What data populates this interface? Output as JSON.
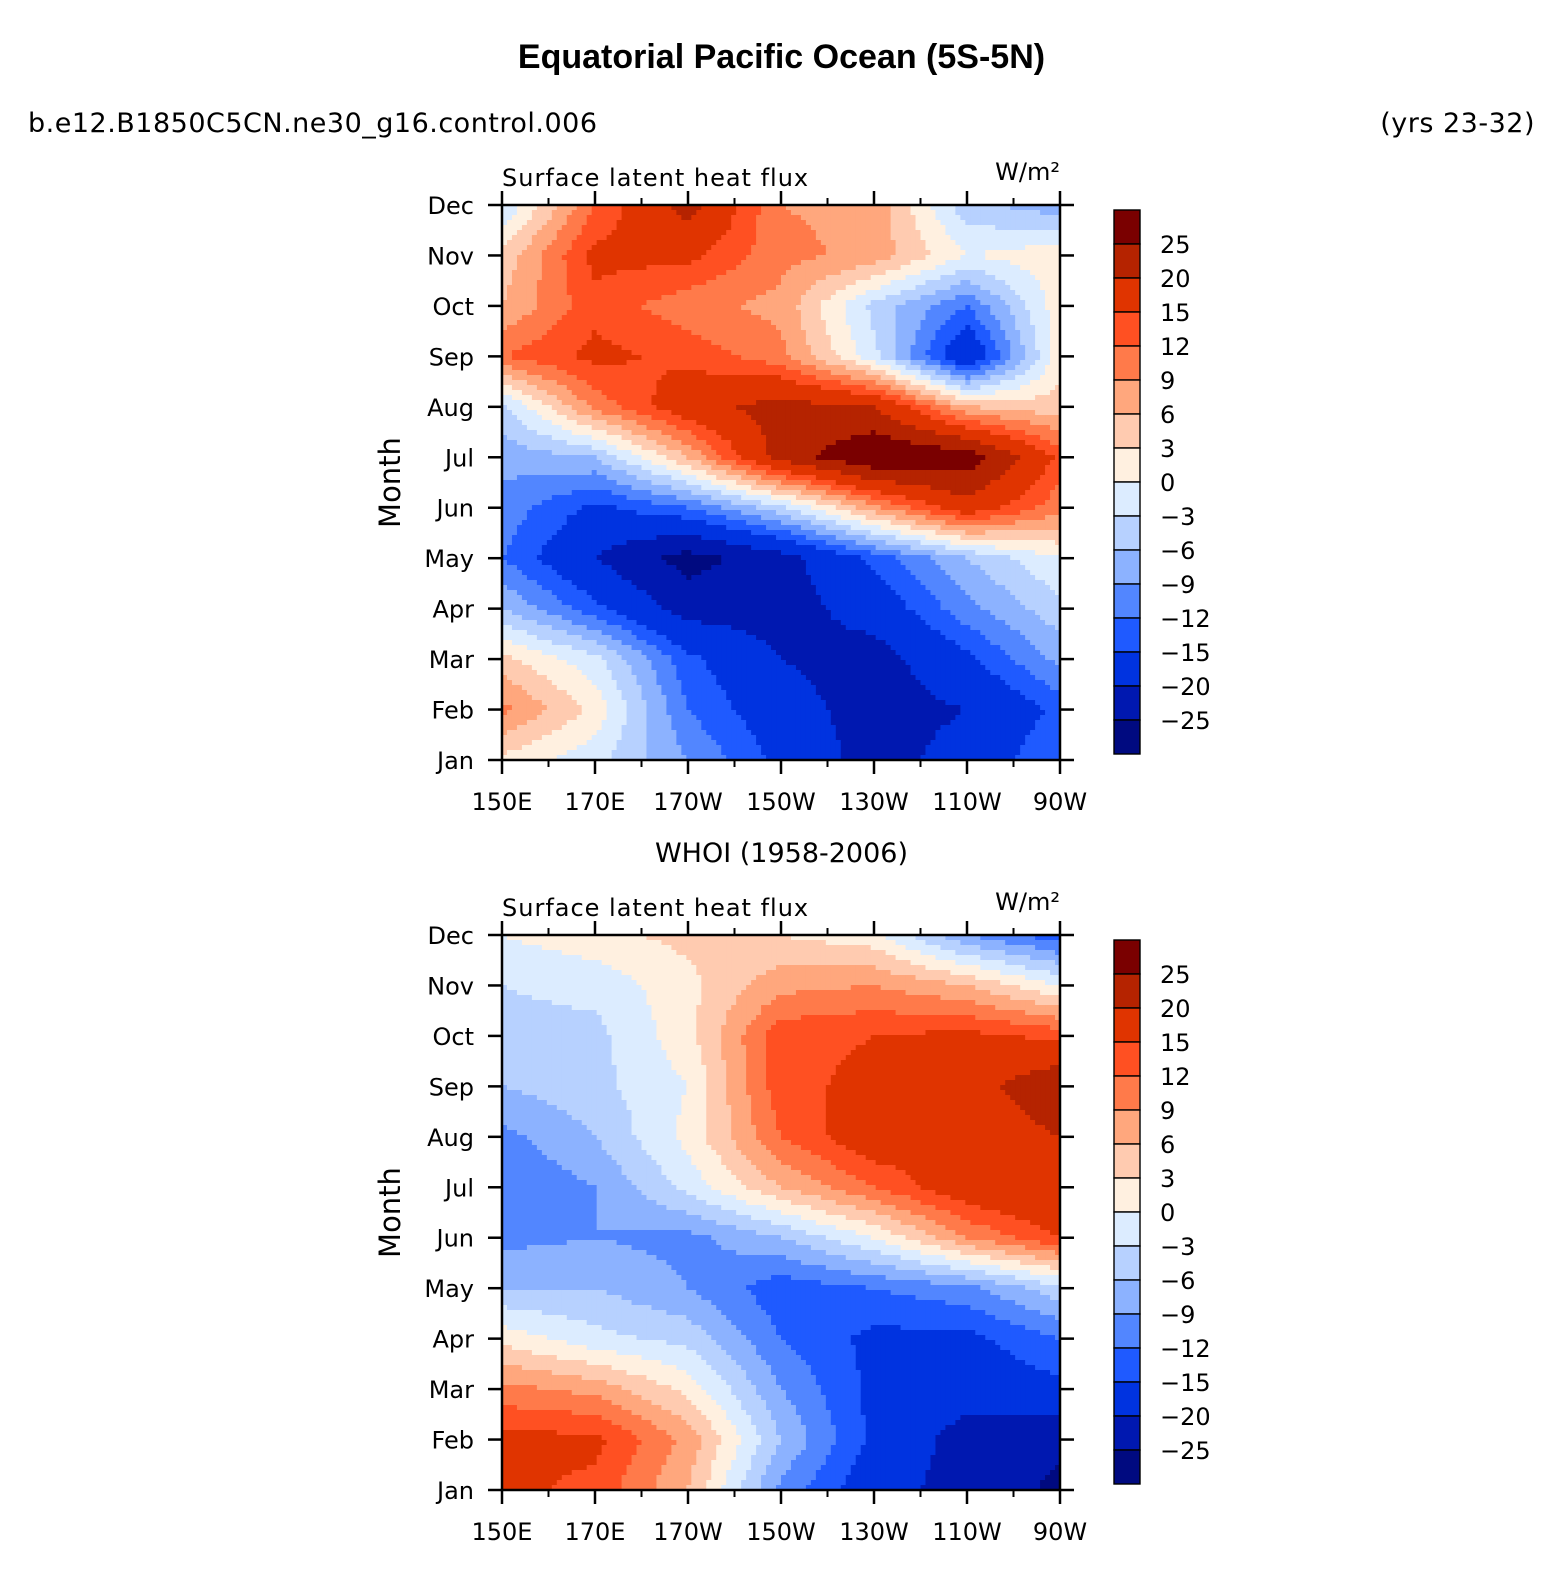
{
  "header": {
    "title": "Equatorial Pacific Ocean (5S-5N)",
    "case": "b.e12.B1850C5CN.ne30_g16.control.006",
    "years": "(yrs 23-32)"
  },
  "panels": [
    {
      "subtitle": "",
      "left_label": "Surface latent heat flux",
      "units": "W/m²"
    },
    {
      "subtitle": "WHOI (1958-2006)",
      "left_label": "Surface latent heat flux",
      "units": "W/m²"
    }
  ],
  "colorbar": {
    "labels": [
      "25",
      "20",
      "15",
      "12",
      "9",
      "6",
      "3",
      "0",
      "-3",
      "-6",
      "-9",
      "-12",
      "-15",
      "-20",
      "-25"
    ],
    "colors": [
      "#7a0000",
      "#b52300",
      "#e03400",
      "#ff5022",
      "#ff7a4a",
      "#ffa77d",
      "#ffcbb0",
      "#fff0e0",
      "#dcecff",
      "#b7d1ff",
      "#8cb2ff",
      "#5286ff",
      "#1f5aff",
      "#0033e0",
      "#0018b0",
      "#000a80"
    ]
  },
  "chart_data": [
    {
      "type": "heatmap",
      "subtype": "filled contour (Hovmoller)",
      "title": "",
      "left_string": "Surface latent heat flux",
      "right_string": "W/m²",
      "xlabel": "",
      "ylabel": "Month",
      "x_ticks": [
        "150E",
        "170E",
        "170W",
        "150W",
        "130W",
        "110W",
        "90W"
      ],
      "x_range": [
        150,
        270
      ],
      "y_ticks": [
        "Jan",
        "Feb",
        "Mar",
        "Apr",
        "May",
        "Jun",
        "Jul",
        "Aug",
        "Sep",
        "Oct",
        "Nov",
        "Dec"
      ],
      "contour_levels": [
        -25,
        -20,
        -15,
        -12,
        -9,
        -6,
        -3,
        0,
        3,
        6,
        9,
        12,
        15,
        20,
        25
      ],
      "lon": [
        150,
        170,
        190,
        210,
        230,
        250,
        270
      ],
      "months": [
        "Jan",
        "Feb",
        "Mar",
        "Apr",
        "May",
        "Jun",
        "Jul",
        "Aug",
        "Sep",
        "Oct",
        "Nov",
        "Dec"
      ],
      "values": [
        [
          2,
          -2,
          -9,
          -16,
          -22,
          -18,
          -12
        ],
        [
          10,
          2,
          -12,
          -18,
          -22,
          -20,
          -14
        ],
        [
          4,
          -2,
          -14,
          -20,
          -22,
          -16,
          -8
        ],
        [
          -6,
          -14,
          -22,
          -22,
          -18,
          -10,
          -4
        ],
        [
          -12,
          -20,
          -27,
          -22,
          -14,
          -6,
          0
        ],
        [
          -10,
          -16,
          -12,
          -4,
          8,
          18,
          10
        ],
        [
          -8,
          -6,
          6,
          22,
          30,
          28,
          14
        ],
        [
          -4,
          10,
          18,
          22,
          20,
          6,
          4
        ],
        [
          12,
          16,
          14,
          10,
          -2,
          -20,
          2
        ],
        [
          6,
          14,
          10,
          8,
          -4,
          -12,
          2
        ],
        [
          4,
          16,
          16,
          10,
          8,
          0,
          2
        ],
        [
          -3,
          12,
          22,
          9,
          8,
          -5,
          -8
        ]
      ]
    },
    {
      "type": "heatmap",
      "subtype": "filled contour (Hovmoller)",
      "title": "WHOI (1958-2006)",
      "left_string": "Surface latent heat flux",
      "right_string": "W/m²",
      "xlabel": "",
      "ylabel": "Month",
      "x_ticks": [
        "150E",
        "170E",
        "170W",
        "150W",
        "130W",
        "110W",
        "90W"
      ],
      "x_range": [
        150,
        270
      ],
      "y_ticks": [
        "Jan",
        "Feb",
        "Mar",
        "Apr",
        "May",
        "Jun",
        "Jul",
        "Aug",
        "Sep",
        "Oct",
        "Nov",
        "Dec"
      ],
      "contour_levels": [
        -25,
        -20,
        -15,
        -12,
        -9,
        -6,
        -3,
        0,
        3,
        6,
        9,
        12,
        15,
        20,
        25
      ],
      "lon": [
        150,
        170,
        190,
        210,
        230,
        250,
        270
      ],
      "months": [
        "Jan",
        "Feb",
        "Mar",
        "Apr",
        "May",
        "Jun",
        "Jul",
        "Aug",
        "Sep",
        "Oct",
        "Nov",
        "Dec"
      ],
      "values": [
        [
          16,
          14,
          6,
          -10,
          -18,
          -22,
          -26
        ],
        [
          16,
          16,
          8,
          -6,
          -16,
          -22,
          -24
        ],
        [
          10,
          8,
          2,
          -9,
          -16,
          -18,
          -16
        ],
        [
          2,
          -2,
          -4,
          -12,
          -16,
          -16,
          -12
        ],
        [
          -6,
          -6,
          -9,
          -14,
          -12,
          -10,
          -4
        ],
        [
          -10,
          -9,
          -10,
          -6,
          0,
          9,
          15
        ],
        [
          -12,
          -9,
          -2,
          6,
          12,
          18,
          20
        ],
        [
          -10,
          -6,
          1,
          12,
          18,
          16,
          20
        ],
        [
          -6,
          -4,
          0,
          14,
          16,
          18,
          24
        ],
        [
          -4,
          -4,
          2,
          14,
          15,
          16,
          14
        ],
        [
          -3,
          -2,
          2,
          8,
          9,
          6,
          0
        ],
        [
          0,
          2,
          4,
          3,
          1,
          -9,
          -14
        ]
      ]
    }
  ]
}
